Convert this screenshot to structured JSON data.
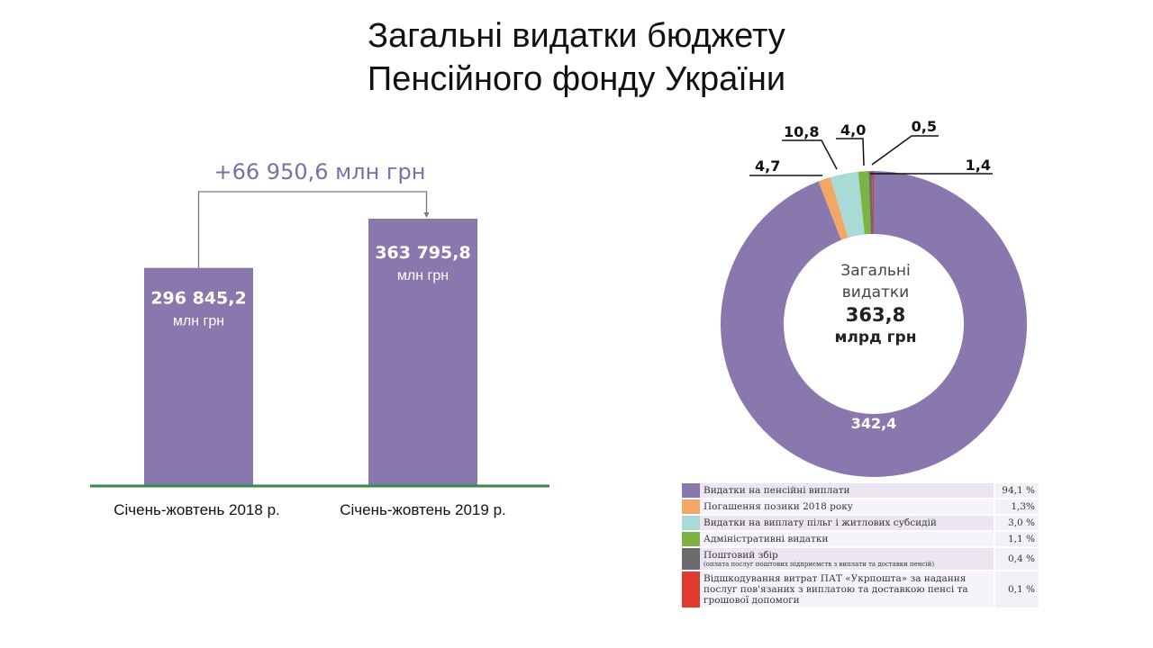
{
  "title_line1": "Загальні видатки бюджету",
  "title_line2": "Пенсійного фонду України",
  "chart_data": [
    {
      "type": "bar",
      "categories": [
        "Січень-жовтень  2018 р.",
        "Січень-жовтень  2019 р."
      ],
      "values": [
        296845.2,
        363795.8
      ],
      "value_labels": [
        "296 845,2",
        "363 795,8"
      ],
      "unit_label": "млн грн",
      "difference_label": "+66 950,6 млн грн",
      "colors": {
        "bar": "#8878ad",
        "baseline": "#3a8a4a",
        "annotation": "#7b6fa8"
      }
    },
    {
      "type": "pie",
      "center_text": [
        "Загальні",
        "видатки"
      ],
      "center_value": "363,8",
      "center_unit": "млрд грн",
      "slices": [
        {
          "label": "Видатки на пенсійні виплати",
          "value": 342.4,
          "value_label": "342,4",
          "percent": "94,1 %",
          "color": "#8878ad"
        },
        {
          "label": "Погашення позики 2018 року",
          "value": 4.7,
          "value_label": "4,7",
          "percent": "1,3%",
          "color": "#f2a766"
        },
        {
          "label": "Видатки на виплату пільг і житлових субсидій",
          "value": 10.8,
          "value_label": "10,8",
          "percent": "3,0 %",
          "color": "#a8dad6"
        },
        {
          "label": "Адміністративні видатки",
          "value": 4.0,
          "value_label": "4,0",
          "percent": "1,1 %",
          "color": "#7cb342"
        },
        {
          "label": "Поштовий збір",
          "sublabel": "(оплата послуг поштових підприємств з виплати та доставки пенсій)",
          "value": 1.4,
          "value_label": "1,4",
          "percent": "0,4 %",
          "color": "#6b6b6b"
        },
        {
          "label": "Відшкодування витрат ПАТ «Укрпошта» за надання послуг пов'язаних з виплатою та доставкою пенсі та грошової допомоги",
          "value": 0.5,
          "value_label": "0,5",
          "percent": "0,1 %",
          "color": "#e03a2e"
        }
      ]
    }
  ]
}
